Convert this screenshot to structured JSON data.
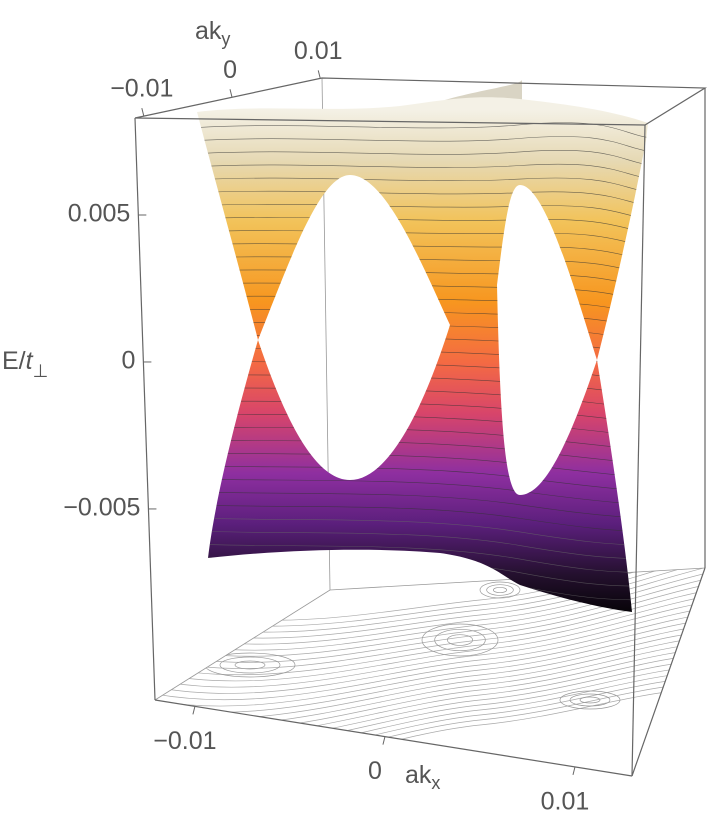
{
  "chart_data": {
    "type": "surface3d",
    "xlabel": {
      "text": "ak",
      "sub": "x"
    },
    "ylabel": {
      "text": "ak",
      "sub": "y"
    },
    "zlabel": {
      "text": "E/",
      "var": "t",
      "sub": "⊥"
    },
    "xlim": [
      -0.0121,
      0.013
    ],
    "xticks": [
      {
        "value": -0.01,
        "label": "−0.01"
      },
      0,
      0.01
    ],
    "ylim": [
      -0.011,
      0.0102
    ],
    "yticks": [
      {
        "value": -0.01,
        "label": "−0.01"
      },
      0,
      0.01
    ],
    "zlim": [
      -0.0115,
      0.0083
    ],
    "zticks": [
      0.005,
      0,
      {
        "value": -0.005,
        "label": "−0.005"
      }
    ]
  }
}
